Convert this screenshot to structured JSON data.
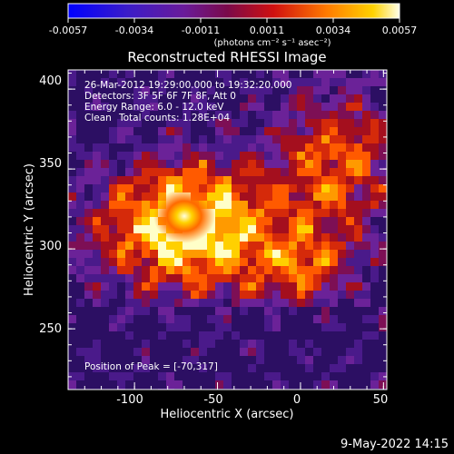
{
  "footer_timestamp": "9-May-2022 14:15",
  "colorbar": {
    "tick_labels": [
      "-0.0057",
      "-0.0034",
      "-0.0011",
      "0.0011",
      "0.0034",
      "0.0057"
    ],
    "units_label": "(photons cm⁻² s⁻¹ asec⁻²)"
  },
  "chart_data": {
    "type": "heatmap",
    "title": "Reconstructed RHESSI Image",
    "xlabel": "Heliocentric X (arcsec)",
    "ylabel": "Heliocentric Y (arcsec)",
    "xlim": [
      -140,
      52
    ],
    "ylim": [
      212,
      412
    ],
    "xticks": [
      "-100",
      "-50",
      "0",
      "50"
    ],
    "yticks": [
      "250",
      "300",
      "350",
      "400"
    ],
    "colorscale_range": [
      -0.0057,
      0.0057
    ],
    "colormap": "hot-with-negative-violet",
    "annotations": [
      "26-Mar-2012 19:29:00.000 to 19:32:20.000",
      "Detectors: 3F 5F 6F 7F 8F, Att 0",
      "Energy Range: 6.0 - 12.0 keV",
      "Clean",
      "Total counts: 1.28E+04"
    ],
    "peak_label": "Position of Peak = [-70,317]",
    "peak_position": [
      -70,
      317
    ]
  }
}
